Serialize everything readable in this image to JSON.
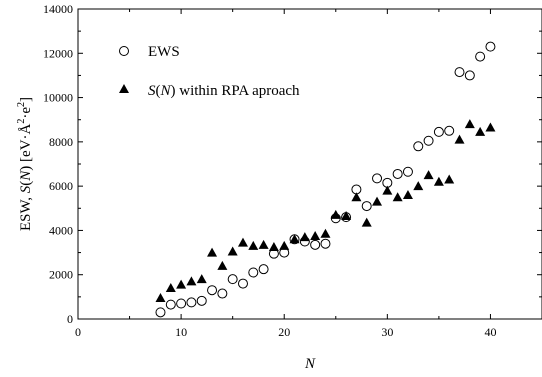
{
  "chart_data": {
    "type": "scatter",
    "xlabel": "N",
    "ylabel_parts": [
      "ESW, ",
      "S",
      "(",
      "N",
      ") [eV·Å",
      "2",
      "·e",
      "2",
      "]"
    ],
    "xlim": [
      0,
      45
    ],
    "ylim": [
      0,
      14000
    ],
    "x_ticks": [
      0,
      10,
      20,
      30,
      40
    ],
    "y_ticks": [
      0,
      2000,
      4000,
      6000,
      8000,
      10000,
      12000,
      14000
    ],
    "x_tick_labels": [
      "0",
      "10",
      "20",
      "30",
      "40"
    ],
    "y_tick_labels": [
      "0",
      "2000",
      "4000",
      "6000",
      "8000",
      "10000",
      "12000",
      "14000"
    ],
    "grid": false,
    "legend_position": "top-left",
    "series": [
      {
        "name": "EWS",
        "marker": "open-circle",
        "color": "#000000",
        "x": [
          8,
          9,
          10,
          11,
          12,
          13,
          14,
          15,
          16,
          17,
          18,
          19,
          20,
          21,
          22,
          23,
          24,
          25,
          26,
          27,
          28,
          29,
          30,
          31,
          32,
          33,
          34,
          35,
          36,
          37,
          38,
          39,
          40
        ],
        "y": [
          300,
          650,
          700,
          750,
          820,
          1300,
          1150,
          1800,
          1600,
          2100,
          2250,
          2950,
          3000,
          3600,
          3500,
          3350,
          3400,
          4550,
          4600,
          5850,
          5100,
          6350,
          6150,
          6550,
          6650,
          7800,
          8050,
          8450,
          8500,
          11150,
          11000,
          11850,
          12300
        ]
      },
      {
        "name_parts": [
          "S",
          "(",
          "N",
          ") within RPA aproach"
        ],
        "marker": "filled-triangle",
        "color": "#000000",
        "x": [
          8,
          9,
          10,
          11,
          12,
          13,
          14,
          15,
          16,
          17,
          18,
          19,
          20,
          21,
          22,
          23,
          24,
          25,
          26,
          27,
          28,
          29,
          30,
          31,
          32,
          33,
          34,
          35,
          36,
          37,
          38,
          39,
          40
        ],
        "y": [
          950,
          1400,
          1550,
          1700,
          1800,
          3000,
          2400,
          3050,
          3450,
          3300,
          3350,
          3250,
          3300,
          3600,
          3700,
          3750,
          3850,
          4700,
          4650,
          5500,
          4350,
          5300,
          5800,
          5500,
          5600,
          6000,
          6500,
          6200,
          6300,
          8100,
          8800,
          8450,
          8650
        ]
      }
    ]
  }
}
